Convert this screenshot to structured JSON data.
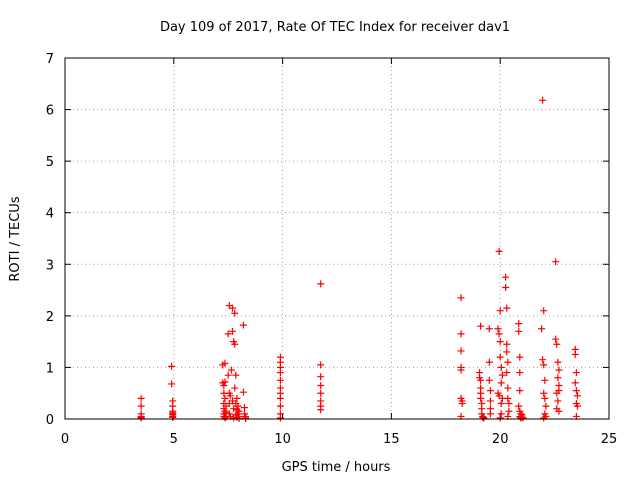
{
  "chart_data": {
    "type": "scatter",
    "title": "Day 109 of 2017, Rate Of TEC Index for receiver dav1",
    "xlabel": "GPS time / hours",
    "ylabel": "ROTI / TECUs",
    "xlim": [
      0,
      25
    ],
    "ylim": [
      0,
      7
    ],
    "xticks": [
      "0",
      "5",
      "10",
      "15",
      "20",
      "25"
    ],
    "yticks": [
      "0",
      "1",
      "2",
      "3",
      "4",
      "5",
      "6",
      "7"
    ],
    "grid": true,
    "marker": "plus",
    "colors": {
      "points": "#ff0000",
      "grid": "#a0a0a0",
      "axes": "#000000"
    },
    "series": [
      {
        "x": [
          3.5,
          3.5,
          3.5,
          3.5,
          3.5,
          3.5,
          4.9,
          4.9,
          4.95,
          4.95,
          4.95,
          4.95,
          4.95,
          4.95,
          4.95,
          4.95,
          7.25,
          7.25,
          7.3,
          7.3,
          7.3,
          7.3,
          7.3,
          7.3,
          7.35,
          7.35,
          7.35,
          7.35,
          7.35,
          7.4,
          7.4,
          7.4,
          7.5,
          7.5,
          7.55,
          7.55,
          7.55,
          7.55,
          7.6,
          7.6,
          7.65,
          7.7,
          7.7,
          7.7,
          7.75,
          7.75,
          7.75,
          7.8,
          7.8,
          7.8,
          7.85,
          7.85,
          7.85,
          7.9,
          7.9,
          7.9,
          7.95,
          7.95,
          8.0,
          8.0,
          8.0,
          8.2,
          8.2,
          8.25,
          8.25,
          8.3,
          8.3,
          8.3,
          9.9,
          9.9,
          9.9,
          9.9,
          9.9,
          9.9,
          9.9,
          9.9,
          9.9,
          9.9,
          9.9,
          11.75,
          11.75,
          11.75,
          11.75,
          11.75,
          11.75,
          11.75,
          11.75,
          18.2,
          18.2,
          18.2,
          18.2,
          18.2,
          18.2,
          18.2,
          18.25,
          18.25,
          19.05,
          19.05,
          19.1,
          19.1,
          19.1,
          19.1,
          19.1,
          19.15,
          19.15,
          19.15,
          19.2,
          19.2,
          19.25,
          19.5,
          19.5,
          19.5,
          19.55,
          19.55,
          19.55,
          19.55,
          19.9,
          19.9,
          19.95,
          19.95,
          19.95,
          20.0,
          20.0,
          20.0,
          20.0,
          20.05,
          20.05,
          20.05,
          20.05,
          20.1,
          20.1,
          20.25,
          20.25,
          20.3,
          20.3,
          20.3,
          20.3,
          20.35,
          20.35,
          20.35,
          20.35,
          20.4,
          20.4,
          20.85,
          20.85,
          20.85,
          20.9,
          20.9,
          20.9,
          20.9,
          20.9,
          20.95,
          20.95,
          20.95,
          21.0,
          21.0,
          21.05,
          21.9,
          21.95,
          21.95,
          22.0,
          22.0,
          22.0,
          22.0,
          22.05,
          22.05,
          22.05,
          22.1,
          22.1,
          22.55,
          22.55,
          22.6,
          22.6,
          22.6,
          22.65,
          22.65,
          22.65,
          22.7,
          22.7,
          22.7,
          22.7,
          23.45,
          23.45,
          23.45,
          23.5,
          23.5,
          23.5,
          23.5,
          23.55,
          23.55
        ],
        "y": [
          0.4,
          0.25,
          0.1,
          0.05,
          0.03,
          0.02,
          1.02,
          0.68,
          0.35,
          0.25,
          0.15,
          0.12,
          0.1,
          0.08,
          0.05,
          0.03,
          1.05,
          0.7,
          0.65,
          0.5,
          0.3,
          0.2,
          0.1,
          0.05,
          1.08,
          0.72,
          0.4,
          0.15,
          0.02,
          0.25,
          0.12,
          0.04,
          1.65,
          0.85,
          2.2,
          0.5,
          0.3,
          0.1,
          0.45,
          0.05,
          0.95,
          2.15,
          1.7,
          0.35,
          1.5,
          0.2,
          0.02,
          1.45,
          2.05,
          0.6,
          0.85,
          0.3,
          0.08,
          0.4,
          0.18,
          0.03,
          0.25,
          0.1,
          0.15,
          0.05,
          0.01,
          1.82,
          0.52,
          0.22,
          0.1,
          0.05,
          0.02,
          0.01,
          1.2,
          1.1,
          1.0,
          0.9,
          0.75,
          0.6,
          0.5,
          0.4,
          0.25,
          0.1,
          0.02,
          2.62,
          1.05,
          0.82,
          0.65,
          0.5,
          0.35,
          0.25,
          0.18,
          2.35,
          1.65,
          1.32,
          1.0,
          0.95,
          0.4,
          0.05,
          0.35,
          0.3,
          0.9,
          0.8,
          1.8,
          0.75,
          0.6,
          0.5,
          0.4,
          0.3,
          0.2,
          0.1,
          0.05,
          0.03,
          0.02,
          1.75,
          1.1,
          0.75,
          0.55,
          0.35,
          0.2,
          0.1,
          1.75,
          0.5,
          3.25,
          1.65,
          0.45,
          2.1,
          1.5,
          1.2,
          0.02,
          1.0,
          0.7,
          0.3,
          0.1,
          0.85,
          0.4,
          2.75,
          2.55,
          2.15,
          1.45,
          1.3,
          0.9,
          1.1,
          0.6,
          0.4,
          0.05,
          0.3,
          0.15,
          1.85,
          1.7,
          0.25,
          1.2,
          0.9,
          0.55,
          0.15,
          0.05,
          0.1,
          0.03,
          0.02,
          0.08,
          0.04,
          0.02,
          1.75,
          6.18,
          1.15,
          2.1,
          1.05,
          0.5,
          0.02,
          0.75,
          0.4,
          0.1,
          0.25,
          0.05,
          3.05,
          1.55,
          1.45,
          0.5,
          0.2,
          1.1,
          0.8,
          0.35,
          0.95,
          0.65,
          0.15,
          0.55,
          1.35,
          1.25,
          0.7,
          0.9,
          0.55,
          0.3,
          0.05,
          0.45,
          0.25
        ]
      }
    ]
  }
}
